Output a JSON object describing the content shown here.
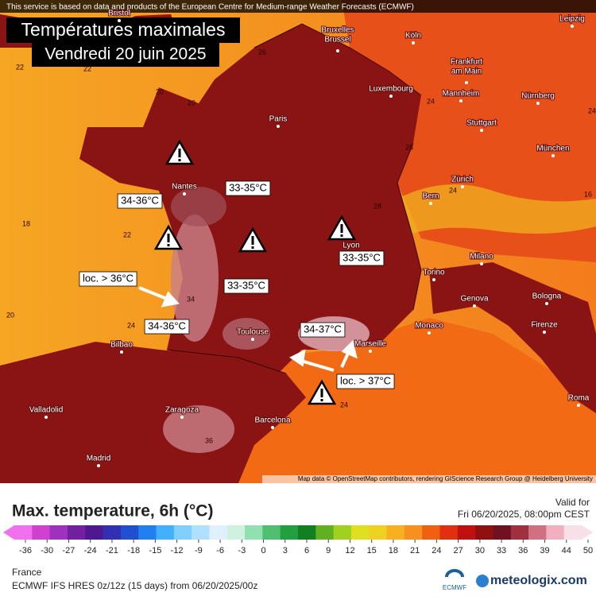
{
  "header": {
    "notice": "This service is based on data and products of the European Centre for Medium-range Weather Forecasts (ECMWF)",
    "title": "Températures maximales",
    "date": "Vendredi 20 juin 2025"
  },
  "cities": [
    [
      "Bristol"
    ],
    [
      "Bruxelles",
      "Brussel"
    ],
    [
      "Köln"
    ],
    [
      "Leipzig"
    ],
    [
      "Frankfurt",
      "am Main"
    ],
    [
      "Luxembourg"
    ],
    [
      "Mannheim"
    ],
    [
      "Nürnberg"
    ],
    [
      "Paris"
    ],
    [
      "Stuttgart"
    ],
    [
      "München"
    ],
    [
      "Nantes"
    ],
    [
      "Zürich"
    ],
    [
      "Bern"
    ],
    [
      "Lyon"
    ],
    [
      "Milano"
    ],
    [
      "Torino"
    ],
    [
      "Genova"
    ],
    [
      "Bologna"
    ],
    [
      "Monaco"
    ],
    [
      "Firenze"
    ],
    [
      "Toulouse"
    ],
    [
      "Marseille"
    ],
    [
      "Bilbao"
    ],
    [
      "Zaragoza"
    ],
    [
      "Barcelona"
    ],
    [
      "Valladolid"
    ],
    [
      "Madrid"
    ],
    [
      "Roma"
    ]
  ],
  "isotherm_labels": [
    "22",
    "20",
    "22",
    "20",
    "18",
    "22",
    "20",
    "24",
    "34",
    "36",
    "26",
    "24",
    "28",
    "28",
    "24",
    "16",
    "24",
    "24"
  ],
  "annotations": [
    "34-36°C",
    "33-35°C",
    "33-35°C",
    "33-35°C",
    "34-36°C",
    "34-37°C",
    "loc. > 36°C",
    "loc. > 37°C"
  ],
  "attribution": "Map data © OpenStreetMap contributors, rendering GIScience Research Group @ Heidelberg University",
  "legend": {
    "title": "Max. temperature, 6h (°C)",
    "valid_label": "Valid for",
    "valid_time": "Fri 06/20/2025, 08:00pm CEST",
    "ticks": [
      -36,
      -30,
      -27,
      -24,
      -21,
      -18,
      -15,
      -12,
      -9,
      -6,
      -3,
      0,
      3,
      6,
      9,
      12,
      15,
      18,
      21,
      24,
      27,
      30,
      33,
      36,
      39,
      44,
      50
    ],
    "colors": [
      "#f070f0",
      "#d040d0",
      "#a030c0",
      "#7020a0",
      "#501890",
      "#3030b0",
      "#2050d0",
      "#2080f0",
      "#40b0ff",
      "#80d0ff",
      "#b0e0ff",
      "#e0f0ff",
      "#d0f0e0",
      "#90e0b0",
      "#50c070",
      "#20a040",
      "#108020",
      "#60b020",
      "#a0d020",
      "#e0e020",
      "#f0d020",
      "#f8b020",
      "#f89020",
      "#f06010",
      "#e03010",
      "#c01010",
      "#901010",
      "#701020",
      "#a03040",
      "#d07080",
      "#f0b0c0",
      "#f8e0e8"
    ]
  },
  "footer": {
    "region": "France",
    "model": "ECMWF IFS HRES 0z/12z (15 days) from 06/20/2025/00z",
    "ecmwf": "ECMWF",
    "brand": "meteologix.com"
  }
}
